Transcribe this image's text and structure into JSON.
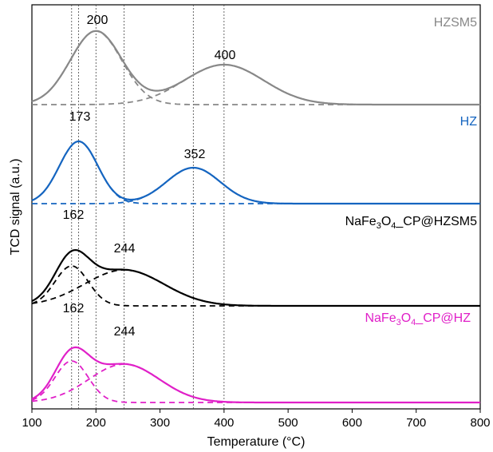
{
  "chart_data": {
    "type": "line",
    "xlabel": "Temperature (°C)",
    "ylabel": "TCD signal (a.u.)",
    "xlim": [
      100,
      800
    ],
    "xticks": [
      100,
      200,
      300,
      400,
      500,
      600,
      700,
      800
    ],
    "yticks_shown": false,
    "grid": false,
    "reference_lines_x": [
      162,
      173,
      200,
      244,
      352,
      400
    ],
    "series": [
      {
        "name": "HZSM5",
        "color": "#888888",
        "peak_labels": [
          "200",
          "400"
        ],
        "components": [
          {
            "center": 200,
            "height": 0.92,
            "width": 40
          },
          {
            "center": 400,
            "height": 0.5,
            "width": 62
          }
        ]
      },
      {
        "name": "HZ",
        "color": "#1565C0",
        "peak_labels": [
          "173",
          "352"
        ],
        "components": [
          {
            "center": 173,
            "height": 0.78,
            "width": 30
          },
          {
            "center": 352,
            "height": 0.45,
            "width": 42
          }
        ]
      },
      {
        "name": "NaFe3O4_CP@HZSM5",
        "color": "#000000",
        "peak_labels": [
          "162",
          "244"
        ],
        "components": [
          {
            "center": 162,
            "height": 0.5,
            "width": 26
          },
          {
            "center": 244,
            "height": 0.45,
            "width": 62
          }
        ]
      },
      {
        "name": "NaFe3O4_CP@HZ",
        "color": "#E020C8",
        "peak_labels": [
          "162",
          "244"
        ],
        "components": [
          {
            "center": 162,
            "height": 0.52,
            "width": 26
          },
          {
            "center": 244,
            "height": 0.48,
            "width": 55
          }
        ]
      }
    ]
  },
  "labels": {
    "s0": {
      "base": "HZSM5"
    },
    "s1": {
      "base": "HZ"
    },
    "s2": {
      "p1": "NaFe",
      "sub1": "3",
      "p2": "O",
      "sub2": "4",
      "p3": "_CP@HZSM5"
    },
    "s3": {
      "p1": "NaFe",
      "sub1": "3",
      "p2": "O",
      "sub2": "4",
      "p3": "_CP@HZ"
    },
    "peaks": {
      "s0_a": "200",
      "s0_b": "400",
      "s1_a": "173",
      "s1_b": "352",
      "s2_a": "162",
      "s2_b": "244",
      "s3_a": "162",
      "s3_b": "244"
    }
  }
}
